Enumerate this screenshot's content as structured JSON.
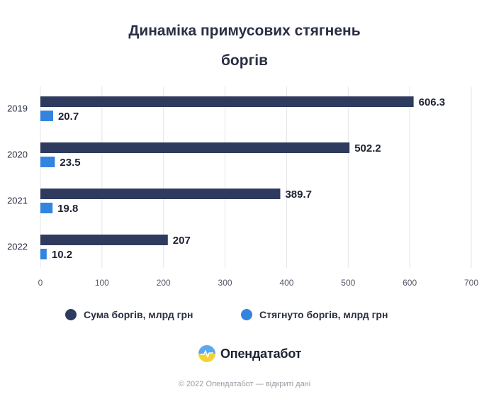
{
  "header": {
    "title_line1": "Динаміка примусових стягнень",
    "title_line2": "боргів"
  },
  "chart_data": {
    "type": "bar",
    "orientation": "horizontal",
    "categories": [
      "2019",
      "2020",
      "2021",
      "2022"
    ],
    "series": [
      {
        "name": "Сума боргів, млрд грн",
        "values": [
          606.3,
          502.2,
          389.7,
          207
        ],
        "labels": [
          "606.3",
          "502.2",
          "389.7",
          "207"
        ],
        "color": "#2e3b5e"
      },
      {
        "name": "Стягнуто боргів, млрд грн",
        "values": [
          20.7,
          23.5,
          19.8,
          10.2
        ],
        "labels": [
          "20.7",
          "23.5",
          "19.8",
          "10.2"
        ],
        "color": "#3384e0"
      }
    ],
    "xlim": [
      0,
      700
    ],
    "xticks": [
      "0",
      "100",
      "200",
      "300",
      "400",
      "500",
      "600",
      "700"
    ],
    "grid": true,
    "legend_position": "bottom"
  },
  "legend": {
    "item1": "Сума боргів, млрд грн",
    "item2": "Стягнуто боргів, млрд грн"
  },
  "brand": {
    "name": "Опендатабот"
  },
  "footer": {
    "text": "© 2022 Опендатабот — відкриті дані"
  }
}
